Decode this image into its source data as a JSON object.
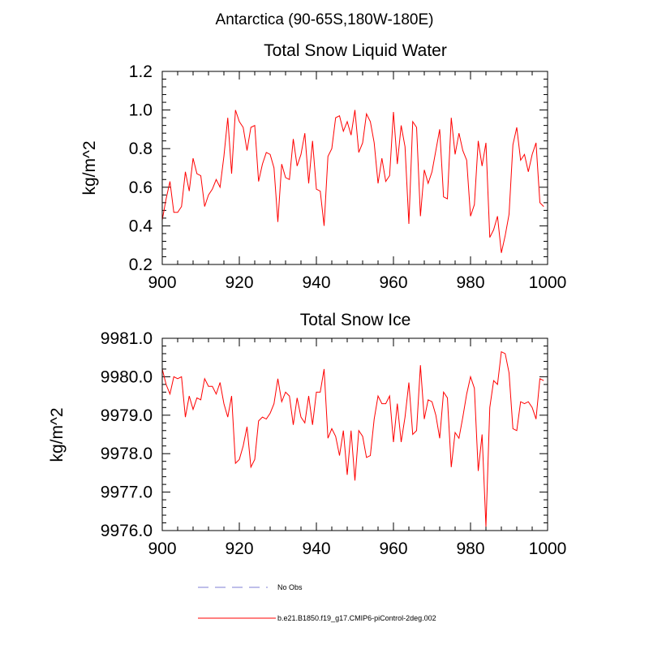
{
  "figure": {
    "title": "Antarctica (90-65S,180W-180E)"
  },
  "chart_data": [
    {
      "type": "line",
      "title": "Total Snow Liquid Water",
      "xlabel": "",
      "ylabel": "kg/m^2",
      "xlim": [
        900,
        1000
      ],
      "ylim": [
        0.2,
        1.2
      ],
      "xticks": [
        900,
        920,
        940,
        960,
        980,
        1000
      ],
      "xtick_labels": [
        "900",
        "920",
        "940",
        "960",
        "980",
        "1000"
      ],
      "yticks": [
        0.2,
        0.4,
        0.6,
        0.8,
        1.0,
        1.2
      ],
      "ytick_labels": [
        "0.2",
        "0.4",
        "0.6",
        "0.8",
        "1.0",
        "1.2"
      ],
      "series": [
        {
          "name": "b.e21.B1850.f19_g17.CMIP6-piControl-2deg.002",
          "color": "#ff0000",
          "x_start": 900,
          "x_step": 1,
          "values": [
            0.43,
            0.54,
            0.63,
            0.47,
            0.47,
            0.5,
            0.68,
            0.58,
            0.75,
            0.67,
            0.66,
            0.5,
            0.56,
            0.59,
            0.64,
            0.6,
            0.76,
            0.96,
            0.67,
            1.0,
            0.94,
            0.91,
            0.79,
            0.91,
            0.92,
            0.63,
            0.72,
            0.78,
            0.77,
            0.7,
            0.42,
            0.72,
            0.65,
            0.64,
            0.85,
            0.71,
            0.77,
            0.88,
            0.62,
            0.84,
            0.59,
            0.58,
            0.4,
            0.76,
            0.8,
            0.96,
            0.97,
            0.89,
            0.94,
            0.87,
            1.0,
            0.78,
            0.83,
            0.98,
            0.94,
            0.83,
            0.62,
            0.75,
            0.63,
            0.66,
            0.99,
            0.72,
            0.92,
            0.81,
            0.41,
            0.94,
            0.91,
            0.45,
            0.69,
            0.62,
            0.68,
            0.79,
            0.9,
            0.55,
            0.54,
            0.96,
            0.77,
            0.88,
            0.79,
            0.74,
            0.45,
            0.51,
            0.84,
            0.71,
            0.83,
            0.34,
            0.38,
            0.45,
            0.26,
            0.35,
            0.46,
            0.82,
            0.91,
            0.74,
            0.77,
            0.68,
            0.77,
            0.83,
            0.52,
            0.5
          ]
        }
      ]
    },
    {
      "type": "line",
      "title": "Total Snow Ice",
      "xlabel": "",
      "ylabel": "kg/m^2",
      "xlim": [
        900,
        1000
      ],
      "ylim": [
        9976.0,
        9981.0
      ],
      "xticks": [
        900,
        920,
        940,
        960,
        980,
        1000
      ],
      "xtick_labels": [
        "900",
        "920",
        "940",
        "960",
        "980",
        "1000"
      ],
      "yticks": [
        9976.0,
        9977.0,
        9978.0,
        9979.0,
        9980.0,
        9981.0
      ],
      "ytick_labels": [
        "9976.0",
        "9977.0",
        "9978.0",
        "9979.0",
        "9980.0",
        "9981.0"
      ],
      "series": [
        {
          "name": "b.e21.B1850.f19_g17.CMIP6-piControl-2deg.002",
          "color": "#ff0000",
          "x_start": 900,
          "x_step": 1,
          "values": [
            9980.2,
            9979.8,
            9979.55,
            9980.0,
            9979.95,
            9980.0,
            9978.95,
            9979.5,
            9979.15,
            9979.45,
            9979.4,
            9979.95,
            9979.75,
            9979.75,
            9979.55,
            9979.85,
            9979.3,
            9978.95,
            9979.5,
            9977.75,
            9977.85,
            9978.2,
            9978.7,
            9977.65,
            9977.85,
            9978.85,
            9978.95,
            9978.9,
            9979.05,
            9979.3,
            9979.95,
            9979.35,
            9979.6,
            9979.5,
            9978.75,
            9979.45,
            9978.95,
            9978.8,
            9979.5,
            9978.75,
            9979.6,
            9979.6,
            9980.2,
            9978.4,
            9978.65,
            9978.45,
            9977.95,
            9978.6,
            9977.45,
            9978.6,
            9977.3,
            9978.6,
            9978.45,
            9977.9,
            9977.95,
            9978.9,
            9979.5,
            9979.3,
            9979.3,
            9979.5,
            9978.3,
            9979.3,
            9978.3,
            9978.95,
            9979.85,
            9978.5,
            9978.6,
            9980.3,
            9978.9,
            9979.4,
            9979.35,
            9979.0,
            9978.4,
            9979.6,
            9979.45,
            9977.65,
            9978.55,
            9978.4,
            9978.95,
            9979.55,
            9980.0,
            9979.7,
            9977.55,
            9978.5,
            9976.1,
            9979.2,
            9979.9,
            9979.8,
            9980.65,
            9980.6,
            9980.1,
            9978.65,
            9978.6,
            9979.35,
            9979.3,
            9979.35,
            9979.2,
            9978.9,
            9979.95,
            9979.9
          ]
        }
      ]
    }
  ],
  "legend": {
    "items": [
      {
        "label": "No Obs",
        "color": "#9999dd",
        "style": "dashed"
      },
      {
        "label": "b.e21.B1850.f19_g17.CMIP6-piControl-2deg.002",
        "color": "#ff0000",
        "style": "solid"
      }
    ]
  }
}
